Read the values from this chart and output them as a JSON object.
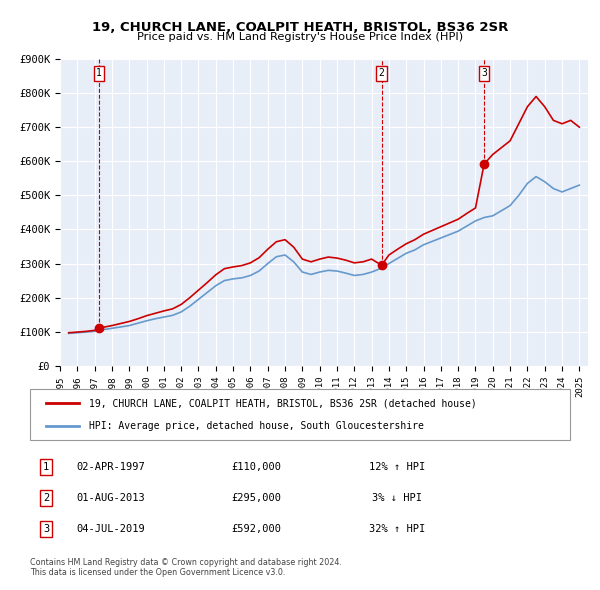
{
  "title": "19, CHURCH LANE, COALPIT HEATH, BRISTOL, BS36 2SR",
  "subtitle": "Price paid vs. HM Land Registry's House Price Index (HPI)",
  "legend_line1": "19, CHURCH LANE, COALPIT HEATH, BRISTOL, BS36 2SR (detached house)",
  "legend_line2": "HPI: Average price, detached house, South Gloucestershire",
  "footer1": "Contains HM Land Registry data © Crown copyright and database right 2024.",
  "footer2": "This data is licensed under the Open Government Licence v3.0.",
  "sale_color": "#cc0000",
  "hpi_color": "#6699cc",
  "bg_color": "#e8eef8",
  "grid_color": "#ffffff",
  "ylim": [
    0,
    900000
  ],
  "xlim_start": 1995.5,
  "xlim_end": 2025.5,
  "yticks": [
    0,
    100000,
    200000,
    300000,
    400000,
    500000,
    600000,
    700000,
    800000,
    900000
  ],
  "ytick_labels": [
    "£0",
    "£100K",
    "£200K",
    "£300K",
    "£400K",
    "£500K",
    "£600K",
    "£700K",
    "£800K",
    "£900K"
  ],
  "xticks": [
    1995,
    1996,
    1997,
    1998,
    1999,
    2000,
    2001,
    2002,
    2003,
    2004,
    2005,
    2006,
    2007,
    2008,
    2009,
    2010,
    2011,
    2012,
    2013,
    2014,
    2015,
    2016,
    2017,
    2018,
    2019,
    2020,
    2021,
    2022,
    2023,
    2024,
    2025
  ],
  "sales": [
    {
      "year": 1997.25,
      "price": 110000,
      "label": "1"
    },
    {
      "year": 2013.58,
      "price": 295000,
      "label": "2"
    },
    {
      "year": 2019.5,
      "price": 592000,
      "label": "3"
    }
  ],
  "transaction_table": [
    {
      "num": "1",
      "date": "02-APR-1997",
      "price": "£110,000",
      "hpi": "12% ↑ HPI"
    },
    {
      "num": "2",
      "date": "01-AUG-2013",
      "price": "£295,000",
      "hpi": "3% ↓ HPI"
    },
    {
      "num": "3",
      "date": "04-JUL-2019",
      "price": "£592,000",
      "hpi": "32% ↑ HPI"
    }
  ],
  "hpi_data": {
    "years": [
      1995.5,
      1996.0,
      1996.5,
      1997.0,
      1997.25,
      1997.5,
      1998.0,
      1998.5,
      1999.0,
      1999.5,
      2000.0,
      2000.5,
      2001.0,
      2001.5,
      2002.0,
      2002.5,
      2003.0,
      2003.5,
      2004.0,
      2004.5,
      2005.0,
      2005.5,
      2006.0,
      2006.5,
      2007.0,
      2007.5,
      2008.0,
      2008.5,
      2009.0,
      2009.5,
      2010.0,
      2010.5,
      2011.0,
      2011.5,
      2012.0,
      2012.5,
      2013.0,
      2013.5,
      2014.0,
      2014.5,
      2015.0,
      2015.5,
      2016.0,
      2016.5,
      2017.0,
      2017.5,
      2018.0,
      2018.5,
      2019.0,
      2019.5,
      2020.0,
      2020.5,
      2021.0,
      2021.5,
      2022.0,
      2022.5,
      2023.0,
      2023.5,
      2024.0,
      2024.5,
      2025.0
    ],
    "values": [
      95000,
      97000,
      99000,
      101000,
      103000,
      106000,
      110000,
      114000,
      118000,
      125000,
      132000,
      138000,
      143000,
      148000,
      158000,
      175000,
      195000,
      215000,
      235000,
      250000,
      255000,
      258000,
      265000,
      278000,
      300000,
      320000,
      325000,
      305000,
      275000,
      268000,
      275000,
      280000,
      278000,
      272000,
      265000,
      268000,
      275000,
      285000,
      300000,
      315000,
      330000,
      340000,
      355000,
      365000,
      375000,
      385000,
      395000,
      410000,
      425000,
      435000,
      440000,
      455000,
      470000,
      500000,
      535000,
      555000,
      540000,
      520000,
      510000,
      520000,
      530000
    ]
  },
  "sale_line_data": {
    "years": [
      1995.5,
      1996.0,
      1996.5,
      1997.0,
      1997.25,
      1997.5,
      1998.0,
      1998.5,
      1999.0,
      1999.5,
      2000.0,
      2000.5,
      2001.0,
      2001.5,
      2002.0,
      2002.5,
      2003.0,
      2003.5,
      2004.0,
      2004.5,
      2005.0,
      2005.5,
      2006.0,
      2006.5,
      2007.0,
      2007.5,
      2008.0,
      2008.5,
      2009.0,
      2009.5,
      2010.0,
      2010.5,
      2011.0,
      2011.5,
      2012.0,
      2012.5,
      2013.0,
      2013.58,
      2014.0,
      2014.5,
      2015.0,
      2015.5,
      2016.0,
      2016.5,
      2017.0,
      2017.5,
      2018.0,
      2018.5,
      2019.0,
      2019.5,
      2020.0,
      2020.5,
      2021.0,
      2021.5,
      2022.0,
      2022.5,
      2023.0,
      2023.5,
      2024.0,
      2024.5,
      2025.0
    ],
    "values": [
      97000,
      99000,
      101000,
      104000,
      110000,
      113000,
      118000,
      124000,
      130000,
      138000,
      147000,
      154000,
      161000,
      167000,
      180000,
      200000,
      222000,
      244000,
      267000,
      285000,
      290000,
      294000,
      302000,
      317000,
      342000,
      364000,
      370000,
      348000,
      313000,
      305000,
      313000,
      319000,
      316000,
      310000,
      302000,
      305000,
      313000,
      295000,
      325000,
      342000,
      358000,
      370000,
      386000,
      397000,
      408000,
      419000,
      430000,
      447000,
      463000,
      592000,
      620000,
      640000,
      660000,
      710000,
      760000,
      790000,
      760000,
      720000,
      710000,
      720000,
      700000
    ]
  }
}
